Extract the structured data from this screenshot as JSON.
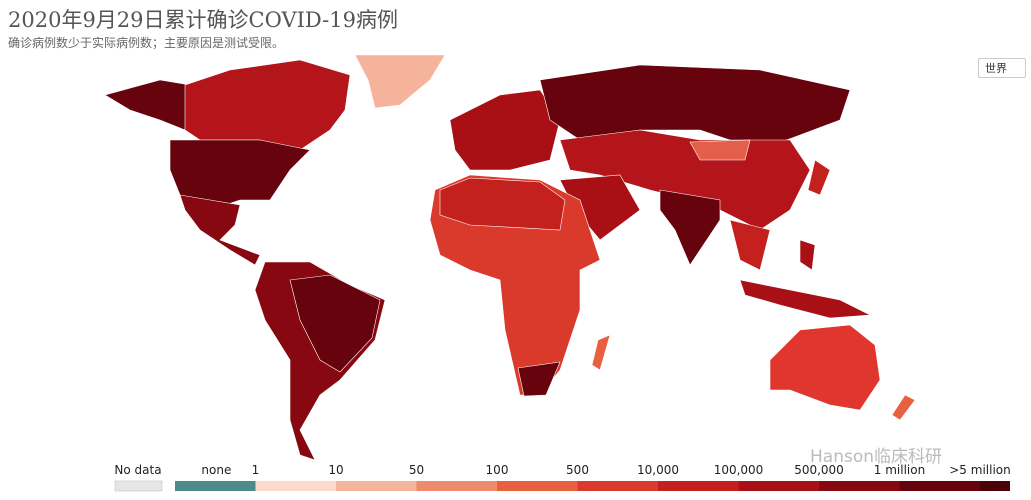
{
  "header": {
    "title": "2020年9月29日累计确诊COVID-19病例",
    "subtitle": "确诊病例数少于实际病例数；主要原因是测试受限。"
  },
  "selector": {
    "label": "世界"
  },
  "legend": {
    "no_data": {
      "label": "No data",
      "color": "#e6e6e6"
    },
    "bins": [
      {
        "label": "none",
        "color": "#4f8a8b"
      },
      {
        "label": "1",
        "color": "#fcd9c8"
      },
      {
        "label": "10",
        "color": "#f6b49a"
      },
      {
        "label": "50",
        "color": "#f08a6d"
      },
      {
        "label": "100",
        "color": "#e8603f"
      },
      {
        "label": "500",
        "color": "#d93a2b"
      },
      {
        "label": "10,000",
        "color": "#c4201d"
      },
      {
        "label": "100,000",
        "color": "#a81016"
      },
      {
        "label": "500,000",
        "color": "#870811"
      },
      {
        "label": "1 million",
        "color": "#67030c"
      },
      {
        "label": ">5 million",
        "color": "#4a0108"
      }
    ]
  },
  "watermark": "Hanson临床科研"
}
